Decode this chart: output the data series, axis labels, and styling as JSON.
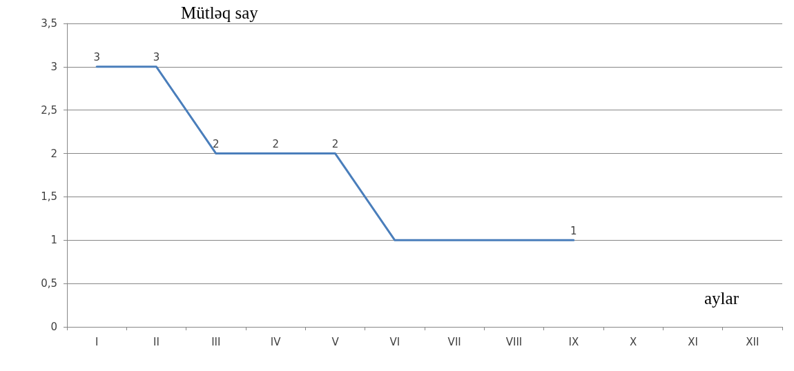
{
  "chart_data": {
    "type": "line",
    "ylabel": "Mütləq say",
    "xlabel": "aylar",
    "categories": [
      "I",
      "II",
      "III",
      "IV",
      "V",
      "VI",
      "VII",
      "VIII",
      "IX",
      "X",
      "XI",
      "XII"
    ],
    "series": [
      {
        "color": "#4a7ebb",
        "values": [
          3,
          3,
          2,
          2,
          2,
          1,
          1,
          1,
          1,
          null,
          null,
          null
        ],
        "value_labels": [
          "3",
          "3",
          "2",
          "2",
          "2",
          null,
          null,
          null,
          "1",
          null,
          null,
          null
        ]
      }
    ],
    "ylim": [
      0,
      3.5
    ],
    "yticks": [
      0,
      {
        "value": 0.5,
        "label": "0,5"
      },
      1,
      {
        "value": 1.5,
        "label": "1,5"
      },
      2,
      {
        "value": 2.5,
        "label": "2,5"
      },
      3,
      {
        "value": 3.5,
        "label": "3,5"
      }
    ],
    "grid": "y",
    "marker": "none",
    "line_style": "solid"
  }
}
